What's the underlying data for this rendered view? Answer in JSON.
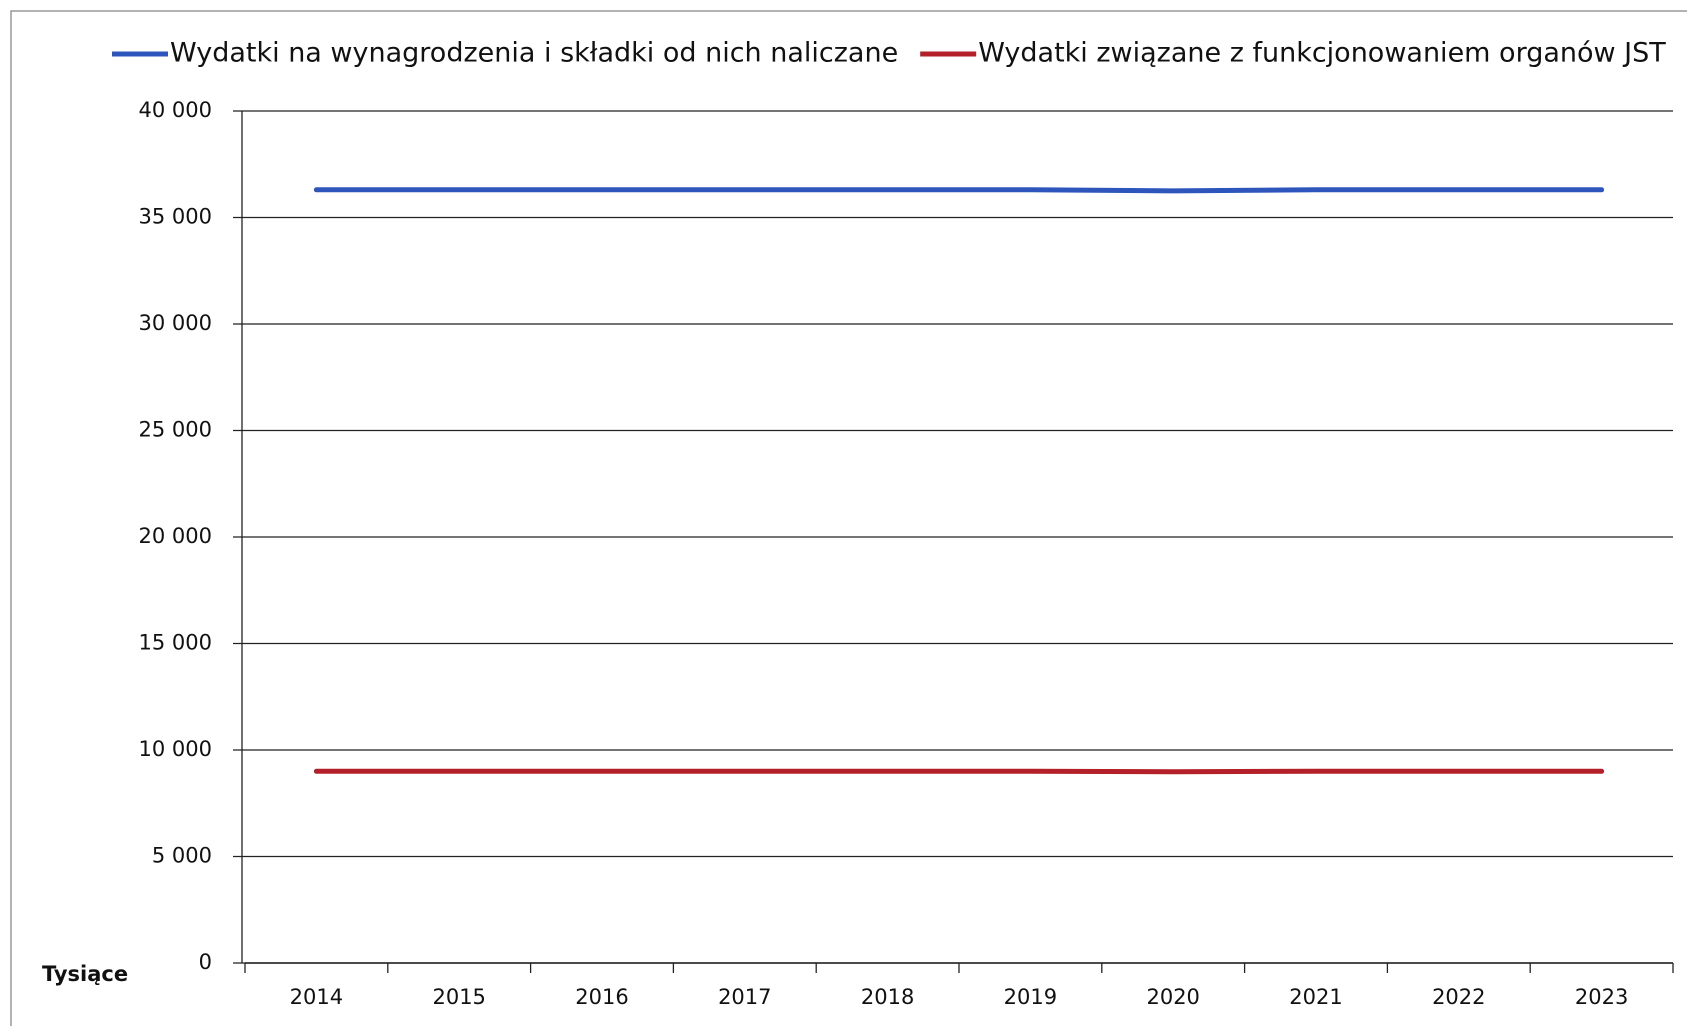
{
  "chart_data": {
    "type": "line",
    "categories": [
      "2014",
      "2015",
      "2016",
      "2017",
      "2018",
      "2019",
      "2020",
      "2021",
      "2022",
      "2023"
    ],
    "series": [
      {
        "name": "Wydatki na wynagrodzenia i składki od nich naliczane",
        "color": "#2d55bb",
        "values": [
          36300,
          36300,
          36300,
          36300,
          36300,
          36300,
          36250,
          36300,
          36300,
          36300
        ]
      },
      {
        "name": "Wydatki związane z funkcjonowaniem organów JST",
        "color": "#b3202a",
        "values": [
          9000,
          9000,
          9000,
          9000,
          9000,
          9000,
          8980,
          9000,
          9000,
          9000
        ]
      }
    ],
    "y_axis_label": "Tysiące",
    "ylim": [
      0,
      40000
    ],
    "yticks": [
      0,
      {
        "value": 5000,
        "label": "5 000"
      },
      {
        "value": 10000,
        "label": "10 000"
      },
      {
        "value": 15000,
        "label": "15 000"
      },
      {
        "value": 20000,
        "label": "20 000"
      },
      {
        "value": 25000,
        "label": "25 000"
      },
      {
        "value": 30000,
        "label": "30 000"
      },
      {
        "value": 35000,
        "label": "35 000"
      },
      {
        "value": 40000,
        "label": "40 000"
      }
    ],
    "grid": true,
    "legend": "top"
  }
}
